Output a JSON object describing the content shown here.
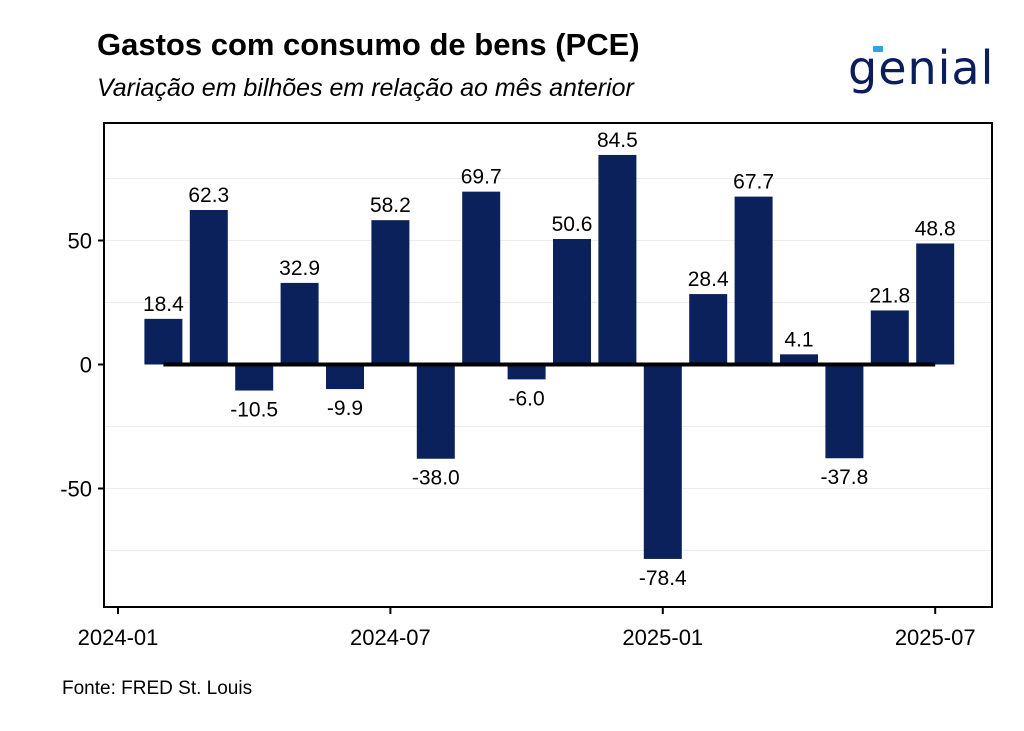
{
  "header": {
    "title": "Gastos com consumo de bens (PCE)",
    "subtitle": "Variação em bilhões em relação ao mês anterior"
  },
  "logo": {
    "text": "genial",
    "accent_color": "#2aa7e0",
    "text_color": "#0b1e5b"
  },
  "footer": {
    "source": "Fonte: FRED St. Louis"
  },
  "colors": {
    "bar": "#0b215b",
    "zero_line": "#000000",
    "grid": "#ebebeb"
  },
  "chart_data": {
    "type": "bar",
    "title": "Gastos com consumo de bens (PCE)",
    "subtitle": "Variação em bilhões em relação ao mês anterior",
    "xlabel": "",
    "ylabel": "",
    "categories": [
      "2024-02",
      "2024-03",
      "2024-04",
      "2024-05",
      "2024-06",
      "2024-07",
      "2024-08",
      "2024-09",
      "2024-10",
      "2024-11",
      "2024-12",
      "2025-01",
      "2025-02",
      "2025-03",
      "2025-04",
      "2025-05",
      "2025-06",
      "2025-07"
    ],
    "values": [
      18.4,
      62.3,
      -10.5,
      32.9,
      -9.9,
      58.2,
      -38.0,
      69.7,
      -6.0,
      50.6,
      84.5,
      -78.4,
      28.4,
      67.7,
      4.1,
      -37.8,
      21.8,
      48.8
    ],
    "value_labels": [
      "18.4",
      "62.3",
      "-10.5",
      "32.9",
      "-9.9",
      "58.2",
      "-38.0",
      "69.7",
      "-6.0",
      "50.6",
      "84.5",
      "-78.4",
      "28.4",
      "67.7",
      "4.1",
      "-37.8",
      "21.8",
      "48.8"
    ],
    "x_ticks": [
      "2024-01",
      "2024-07",
      "2025-01",
      "2025-07"
    ],
    "y_ticks": [
      50,
      0,
      -50
    ],
    "y_tick_labels": [
      "50",
      "0",
      "-50"
    ],
    "ylim": [
      -97,
      97
    ],
    "grid": true,
    "legend": "none"
  }
}
